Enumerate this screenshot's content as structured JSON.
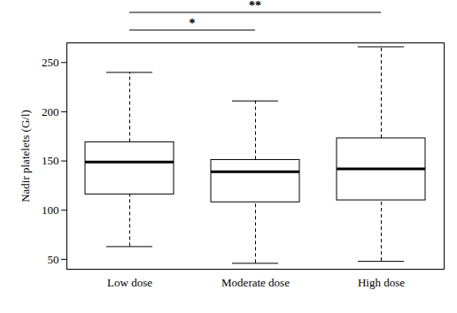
{
  "chart_data": {
    "type": "box",
    "ylabel": "Nadir platelets (G/l)",
    "categories": [
      "Low dose",
      "Moderate dose",
      "High dose"
    ],
    "whisker_low": [
      63,
      46,
      48
    ],
    "q1": [
      116,
      108,
      110
    ],
    "median": [
      149,
      139,
      142
    ],
    "q3": [
      169,
      151,
      173
    ],
    "whisker_high": [
      240,
      211,
      266
    ],
    "ylim": [
      40,
      270
    ],
    "yticks": [
      50,
      100,
      150,
      200,
      250
    ],
    "annotations": [
      {
        "from": "Low dose",
        "to": "Moderate dose",
        "label": "*"
      },
      {
        "from": "Low dose",
        "to": "High dose",
        "label": "**"
      }
    ]
  }
}
